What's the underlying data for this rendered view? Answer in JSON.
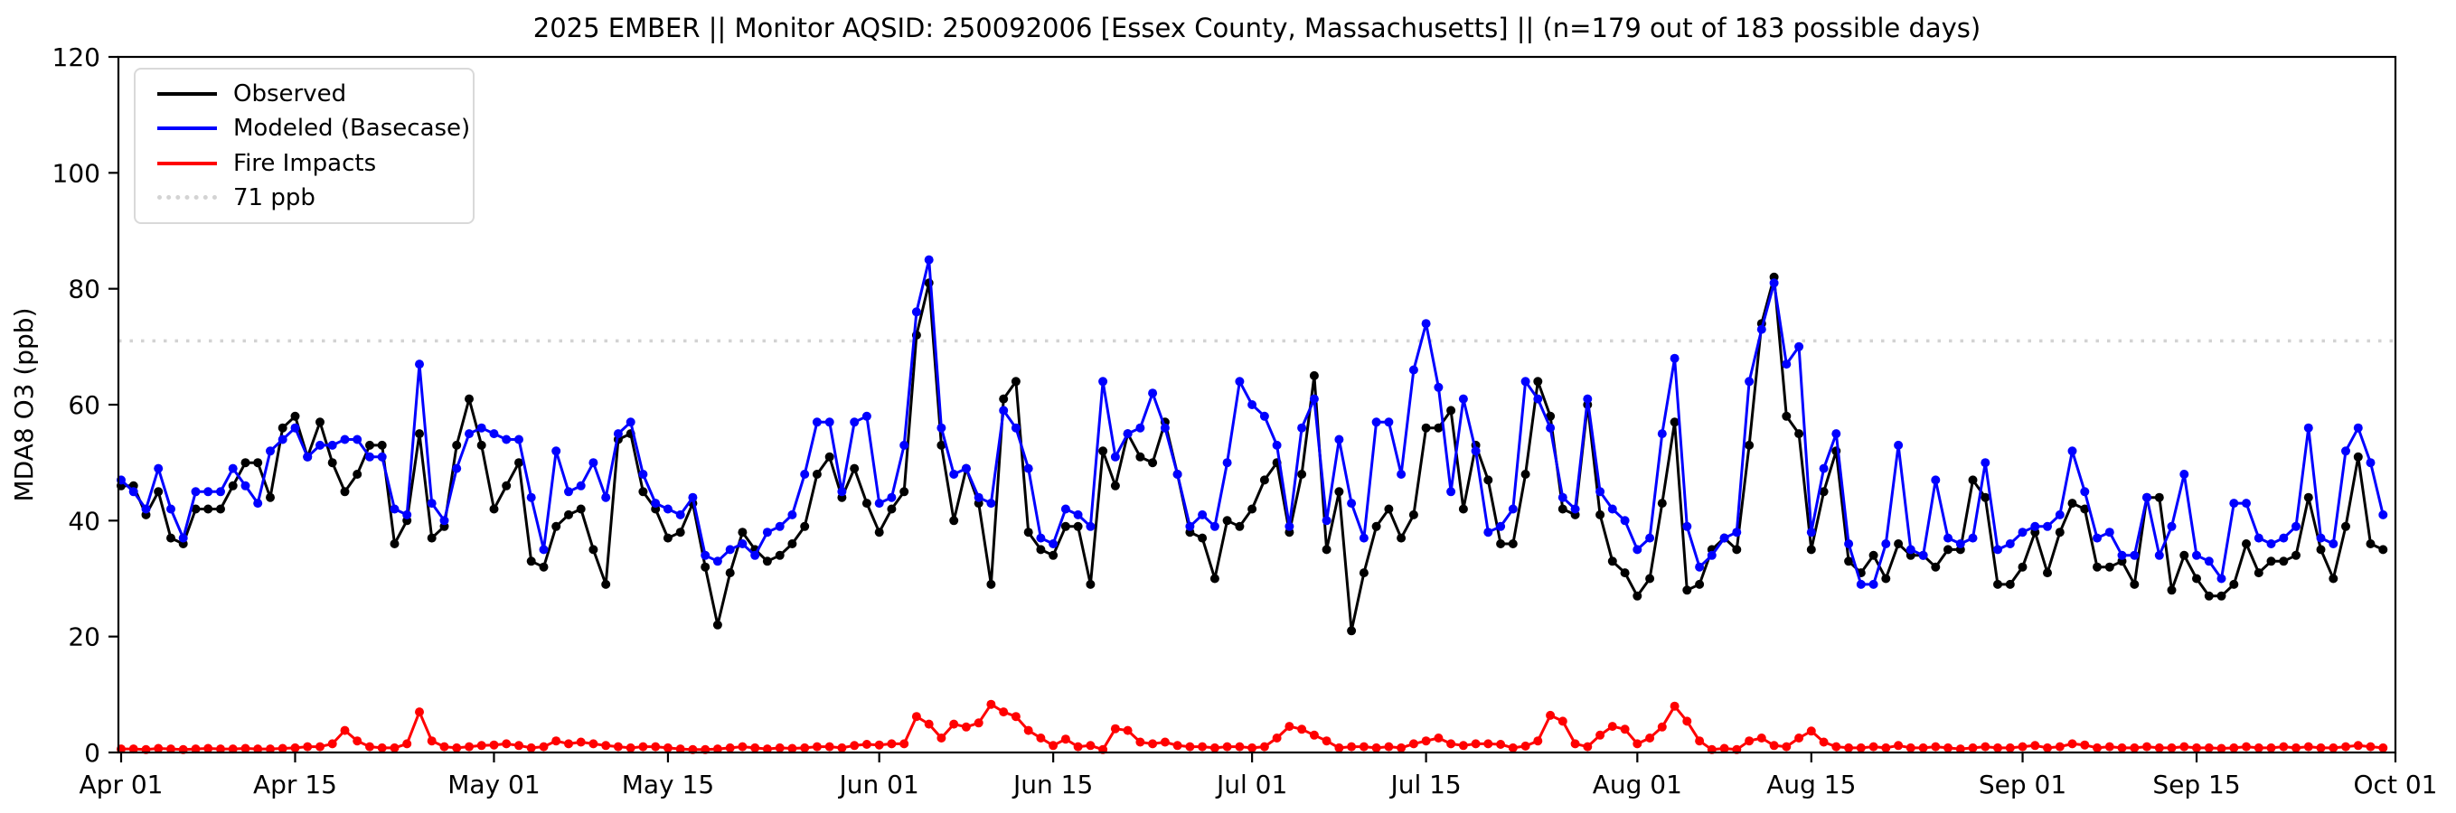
{
  "title": "2025 EMBER || Monitor AQSID: 250092006 [Essex County, Massachusetts] || (n=179 out of 183 possible days)",
  "chart_data": {
    "type": "line",
    "title": "2025 EMBER || Monitor AQSID: 250092006 [Essex County, Massachusetts] || (n=179 out of 183 possible days)",
    "xlabel": "",
    "ylabel": "MDA8 O3 (ppb)",
    "ylim": [
      0,
      120
    ],
    "yticks": [
      0,
      20,
      40,
      60,
      80,
      100,
      120
    ],
    "x_start_date": "Apr 01",
    "x_end_date": "Oct 01",
    "n_days": 183,
    "monitor_days_note": "n=179 out of 183 possible days",
    "grid": "off",
    "legend_position": "upper-left",
    "xtick_labels": [
      "Apr 01",
      "Apr 15",
      "May 01",
      "May 15",
      "Jun 01",
      "Jun 15",
      "Jul 01",
      "Jul 15",
      "Aug 01",
      "Aug 15",
      "Sep 01",
      "Sep 15",
      "Oct 01"
    ],
    "xtick_day_index": [
      0,
      14,
      30,
      44,
      61,
      75,
      91,
      105,
      122,
      136,
      153,
      167,
      183
    ],
    "reference_line": {
      "label": "71 ppb",
      "value": 71,
      "color": "#d3d3d3",
      "style": "dotted"
    },
    "legend": [
      {
        "label": "Observed",
        "color": "#000000",
        "style": "solid"
      },
      {
        "label": "Modeled (Basecase)",
        "color": "#0000ff",
        "style": "solid"
      },
      {
        "label": "Fire Impacts",
        "color": "#ff0000",
        "style": "solid"
      },
      {
        "label": "71 ppb",
        "color": "#d3d3d3",
        "style": "dotted"
      }
    ],
    "series": [
      {
        "name": "Observed",
        "color": "#000000",
        "values": [
          46,
          46,
          41,
          45,
          37,
          36,
          42,
          42,
          42,
          46,
          50,
          50,
          44,
          56,
          58,
          51,
          57,
          50,
          45,
          48,
          53,
          53,
          36,
          40,
          55,
          37,
          39,
          53,
          61,
          53,
          42,
          46,
          50,
          33,
          32,
          39,
          41,
          42,
          35,
          29,
          54,
          55,
          45,
          42,
          37,
          38,
          43,
          32,
          22,
          31,
          38,
          35,
          33,
          34,
          36,
          39,
          48,
          51,
          44,
          49,
          43,
          38,
          42,
          45,
          72,
          81,
          53,
          40,
          49,
          43,
          29,
          61,
          64,
          38,
          35,
          34,
          39,
          39,
          29,
          52,
          46,
          55,
          51,
          50,
          57,
          48,
          38,
          37,
          30,
          40,
          39,
          42,
          47,
          50,
          38,
          48,
          65,
          35,
          45,
          21,
          31,
          39,
          42,
          37,
          41,
          56,
          56,
          59,
          42,
          53,
          47,
          36,
          36,
          48,
          64,
          58,
          42,
          41,
          60,
          41,
          33,
          31,
          27,
          30,
          43,
          57,
          28,
          29,
          35,
          37,
          35,
          53,
          74,
          82,
          58,
          55,
          35,
          45,
          52,
          33,
          31,
          34,
          30,
          36,
          34,
          34,
          32,
          35,
          35,
          47,
          44,
          29,
          29,
          32,
          38,
          31,
          38,
          43,
          42,
          32,
          32,
          33,
          29,
          44,
          44,
          28,
          34,
          30,
          27,
          27,
          29,
          36,
          31,
          33,
          33,
          34,
          44,
          35,
          30,
          39,
          51,
          36,
          35
        ]
      },
      {
        "name": "Modeled (Basecase)",
        "color": "#0000ff",
        "values": [
          47,
          45,
          42,
          49,
          42,
          37,
          45,
          45,
          45,
          49,
          46,
          43,
          52,
          54,
          56,
          51,
          53,
          53,
          54,
          54,
          51,
          51,
          42,
          41,
          67,
          43,
          40,
          49,
          55,
          56,
          55,
          54,
          54,
          44,
          35,
          52,
          45,
          46,
          50,
          44,
          55,
          57,
          48,
          43,
          42,
          41,
          44,
          34,
          33,
          35,
          36,
          34,
          38,
          39,
          41,
          48,
          57,
          57,
          45,
          57,
          58,
          43,
          44,
          53,
          76,
          85,
          56,
          48,
          49,
          44,
          43,
          59,
          56,
          49,
          37,
          36,
          42,
          41,
          39,
          64,
          51,
          55,
          56,
          62,
          56,
          48,
          39,
          41,
          39,
          50,
          64,
          60,
          58,
          53,
          39,
          56,
          61,
          40,
          54,
          43,
          37,
          57,
          57,
          48,
          66,
          74,
          63,
          45,
          61,
          52,
          38,
          39,
          42,
          64,
          61,
          56,
          44,
          42,
          61,
          45,
          42,
          40,
          35,
          37,
          55,
          68,
          39,
          32,
          34,
          37,
          38,
          64,
          73,
          81,
          67,
          70,
          38,
          49,
          55,
          36,
          29,
          29,
          36,
          53,
          35,
          34,
          47,
          37,
          36,
          37,
          50,
          35,
          36,
          38,
          39,
          39,
          41,
          52,
          45,
          37,
          38,
          34,
          34,
          44,
          34,
          39,
          48,
          34,
          33,
          30,
          43,
          43,
          37,
          36,
          37,
          39,
          56,
          37,
          36,
          52,
          56,
          50,
          41
        ]
      },
      {
        "name": "Fire Impacts",
        "color": "#ff0000",
        "values": [
          0.6,
          0.6,
          0.5,
          0.7,
          0.6,
          0.5,
          0.6,
          0.7,
          0.6,
          0.6,
          0.7,
          0.6,
          0.6,
          0.7,
          0.8,
          1.0,
          1.0,
          1.5,
          3.8,
          2.0,
          1.0,
          0.8,
          0.8,
          1.5,
          7.0,
          2.0,
          1.0,
          0.8,
          1.0,
          1.2,
          1.3,
          1.5,
          1.2,
          0.8,
          1.0,
          2.0,
          1.5,
          1.8,
          1.5,
          1.2,
          1.0,
          0.8,
          1.0,
          1.0,
          0.8,
          0.6,
          0.5,
          0.5,
          0.6,
          0.8,
          1.0,
          0.8,
          0.6,
          0.8,
          0.7,
          0.8,
          1.0,
          1.0,
          0.8,
          1.2,
          1.4,
          1.3,
          1.5,
          1.5,
          6.2,
          4.9,
          2.5,
          4.9,
          4.4,
          5.1,
          8.3,
          7.0,
          6.2,
          3.8,
          2.5,
          1.2,
          2.3,
          1.0,
          1.2,
          0.5,
          4.1,
          3.8,
          1.8,
          1.5,
          1.8,
          1.2,
          1.0,
          1.0,
          0.8,
          1.0,
          1.0,
          0.8,
          1.0,
          2.5,
          4.5,
          4.0,
          3.0,
          2.0,
          0.8,
          1.0,
          1.0,
          0.8,
          1.0,
          0.8,
          1.5,
          2.0,
          2.5,
          1.5,
          1.2,
          1.5,
          1.5,
          1.4,
          0.8,
          1.1,
          2.0,
          6.4,
          5.4,
          1.5,
          1.0,
          3.0,
          4.5,
          4.0,
          1.5,
          2.5,
          4.4,
          8.0,
          5.4,
          2.0,
          0.5,
          0.7,
          0.5,
          2.0,
          2.5,
          1.2,
          1.0,
          2.5,
          3.7,
          1.8,
          1.0,
          0.8,
          0.8,
          1.0,
          0.8,
          1.2,
          0.8,
          0.8,
          1.0,
          0.8,
          0.6,
          0.8,
          1.0,
          0.8,
          0.8,
          1.0,
          1.2,
          0.8,
          1.0,
          1.5,
          1.3,
          0.8,
          1.0,
          0.8,
          0.8,
          1.0,
          0.8,
          0.8,
          1.0,
          0.8,
          0.8,
          0.7,
          0.8,
          1.0,
          0.8,
          0.8,
          1.0,
          0.8,
          1.0,
          0.8,
          0.8,
          1.0,
          1.2,
          1.0,
          0.8
        ]
      }
    ]
  }
}
